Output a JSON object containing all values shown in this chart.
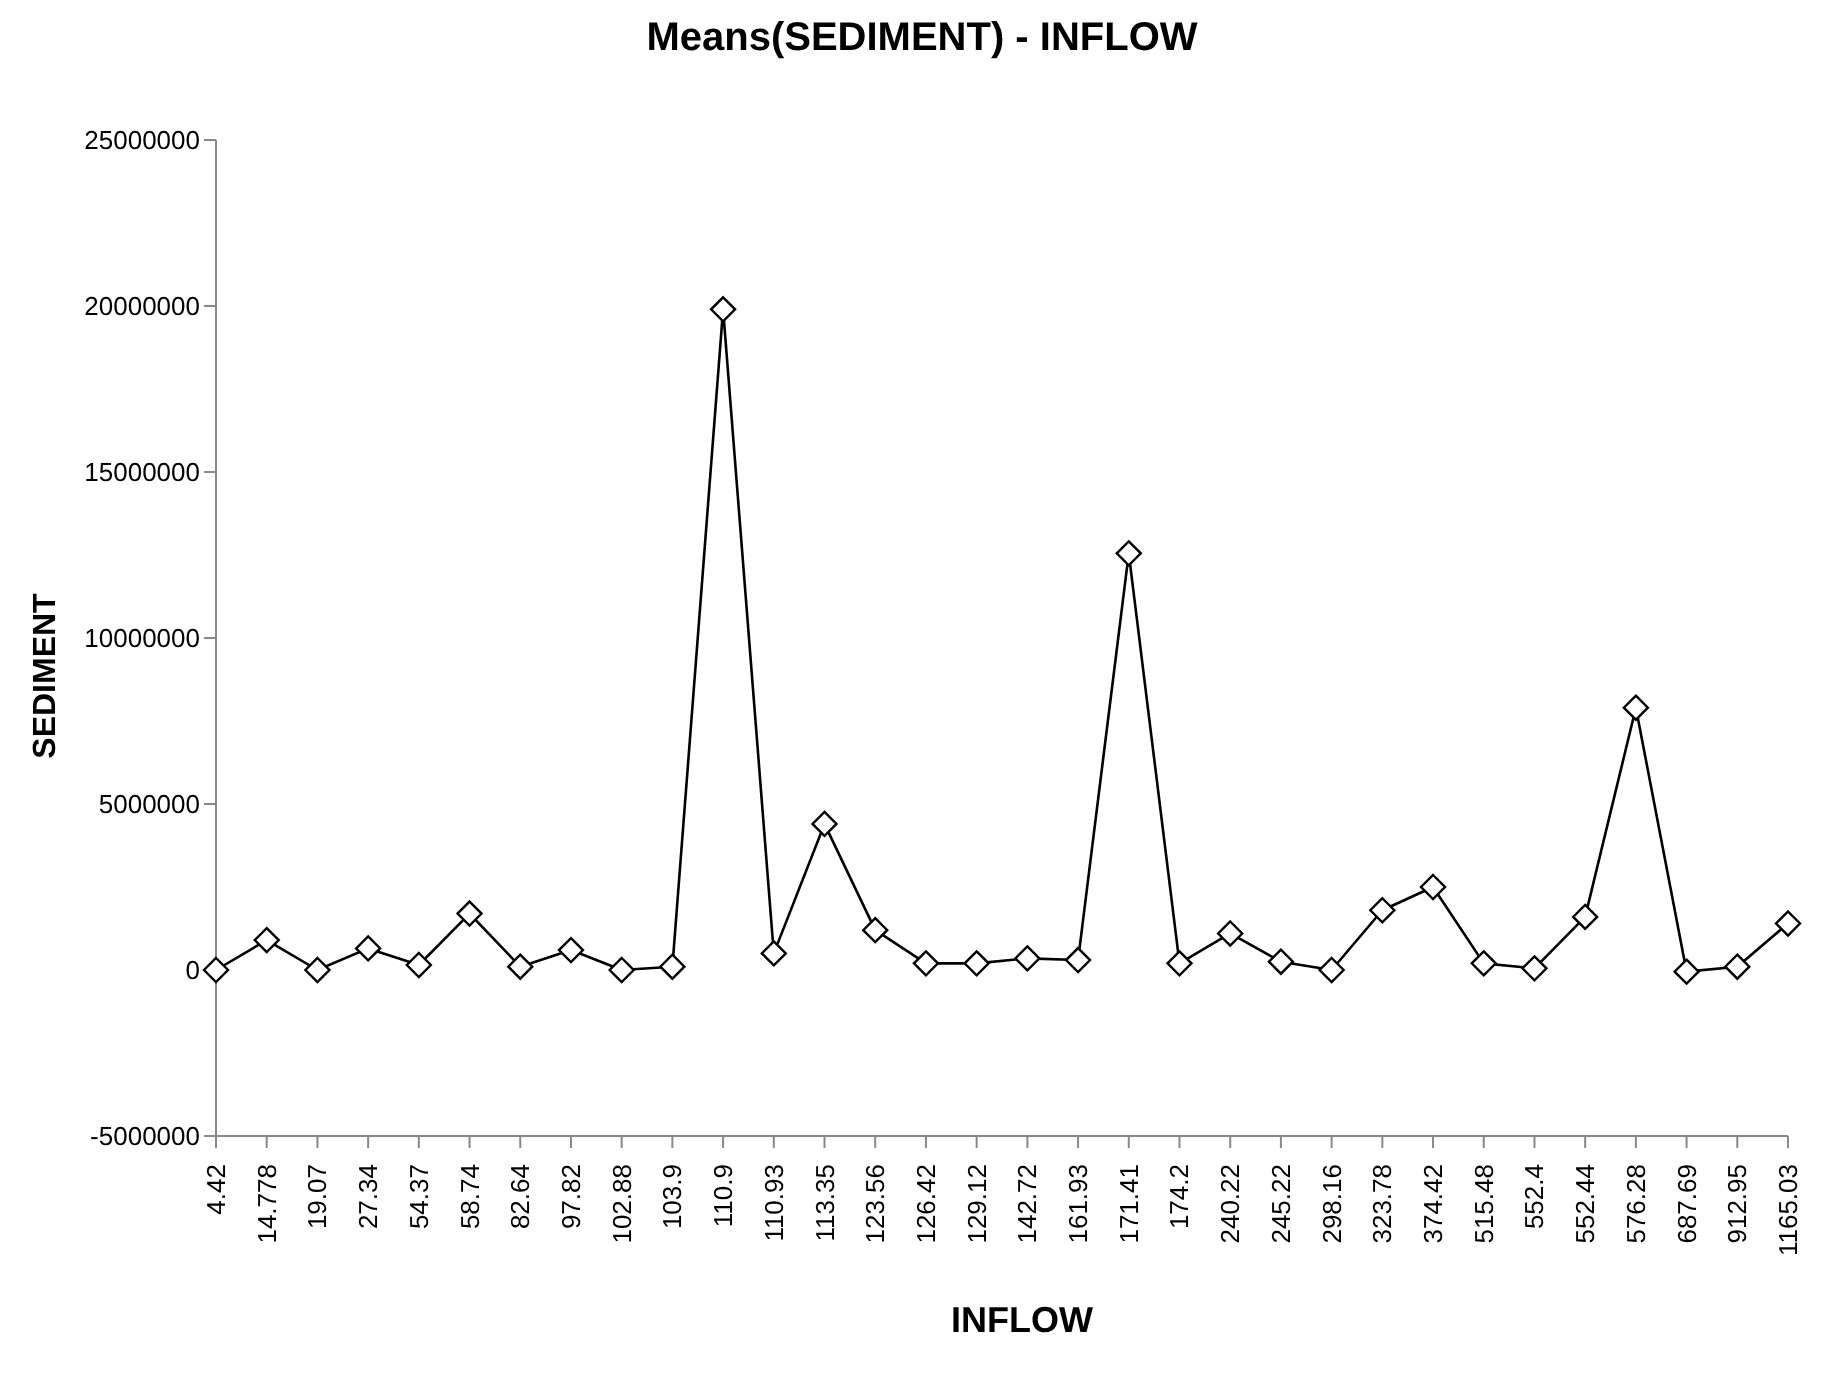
{
  "chart_data": {
    "type": "line",
    "title": "Means(SEDIMENT) - INFLOW",
    "xlabel": "INFLOW",
    "ylabel": "SEDIMENT",
    "categories": [
      "4.42",
      "14.778",
      "19.07",
      "27.34",
      "54.37",
      "58.74",
      "82.64",
      "97.82",
      "102.88",
      "103.9",
      "110.9",
      "110.93",
      "113.35",
      "123.56",
      "126.42",
      "129.12",
      "142.72",
      "161.93",
      "171.41",
      "174.2",
      "240.22",
      "245.22",
      "298.16",
      "323.78",
      "374.42",
      "515.48",
      "552.4",
      "552.44",
      "576.28",
      "687.69",
      "912.95",
      "1165.03"
    ],
    "series": [
      {
        "color": "#000000",
        "values": [
          0,
          900000,
          0,
          650000,
          150000,
          1700000,
          100000,
          600000,
          0,
          100000,
          19900000,
          500000,
          4400000,
          1200000,
          200000,
          200000,
          350000,
          300000,
          12550000,
          200000,
          1100000,
          250000,
          0,
          1800000,
          2500000,
          200000,
          50000,
          1600000,
          7900000,
          -50000,
          100000,
          1400000
        ]
      }
    ],
    "ylim": [
      -5000000,
      25000000
    ],
    "yticks": [
      -5000000,
      0,
      5000000,
      10000000,
      15000000,
      20000000,
      25000000
    ],
    "grid": false,
    "legend": false,
    "marker": "diamond",
    "line_style": "solid"
  }
}
